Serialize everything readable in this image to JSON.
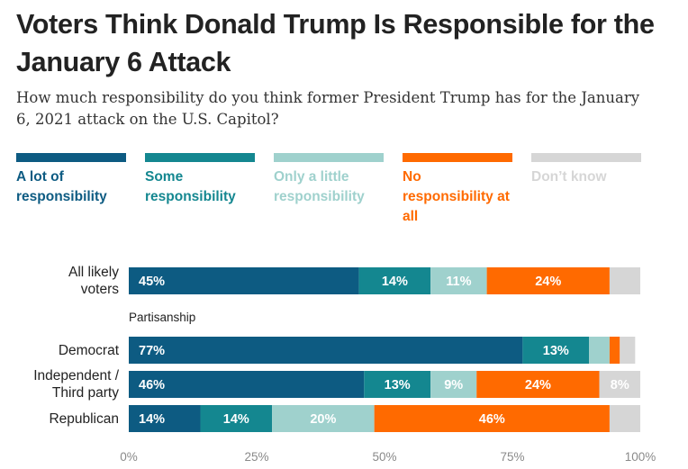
{
  "title": "Voters Think Donald Trump Is Responsible for the January 6 Attack",
  "subtitle": "How much responsibility do you think former President Trump has for the January 6, 2021 attack on the U.S. Capitol?",
  "legend": [
    {
      "label": "A lot of responsibility",
      "color": "#0d5b82"
    },
    {
      "label": "Some responsibility",
      "color": "#148790"
    },
    {
      "label": "Only a little responsibility",
      "color": "#9fd1cd"
    },
    {
      "label": "No responsibility at all",
      "color": "#ff6a00"
    },
    {
      "label": "Don’t know",
      "color": "#d6d6d6"
    }
  ],
  "section_label": "Partisanship",
  "chart_data": {
    "type": "bar",
    "orientation": "horizontal",
    "stacked": true,
    "title": "Voters Think Donald Trump Is Responsible for the January 6 Attack",
    "xlim": [
      0,
      100
    ],
    "x_ticks": [
      "0%",
      "25%",
      "50%",
      "75%",
      "100%"
    ],
    "categories": [
      "All likely voters",
      "Democrat",
      "Independent / Third party",
      "Republican"
    ],
    "category_labels": [
      "All likely\nvoters",
      "Democrat",
      "Independent /\nThird party",
      "Republican"
    ],
    "series": [
      {
        "name": "A lot of responsibility",
        "values": [
          45,
          77,
          46,
          14
        ],
        "labels": [
          "45%",
          "77%",
          "46%",
          "14%"
        ]
      },
      {
        "name": "Some responsibility",
        "values": [
          14,
          13,
          13,
          14
        ],
        "labels": [
          "14%",
          "13%",
          "13%",
          "14%"
        ]
      },
      {
        "name": "Only a little responsibility",
        "values": [
          11,
          4,
          9,
          20
        ],
        "labels": [
          "11%",
          "",
          "9%",
          "20%"
        ]
      },
      {
        "name": "No responsibility at all",
        "values": [
          24,
          2,
          24,
          46
        ],
        "labels": [
          "24%",
          "",
          "24%",
          "46%"
        ]
      },
      {
        "name": "Don’t know",
        "values": [
          6,
          3,
          8,
          6
        ],
        "labels": [
          "",
          "",
          "8%",
          ""
        ]
      }
    ]
  }
}
